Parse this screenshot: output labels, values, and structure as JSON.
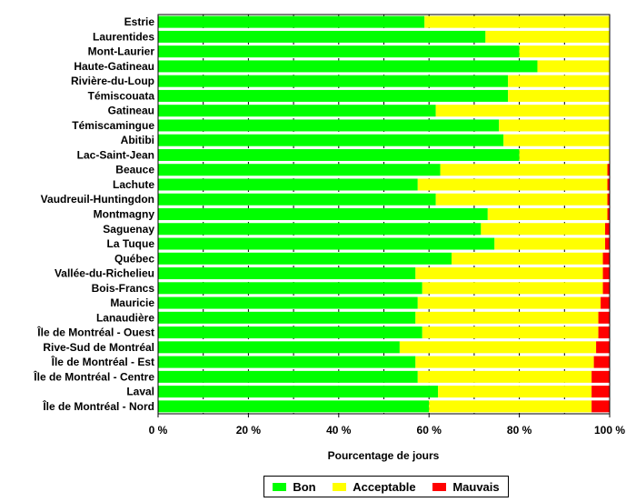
{
  "chart_data": {
    "type": "bar",
    "orientation": "horizontal",
    "stacked": true,
    "xlabel": "Pourcentage de jours",
    "xlim": [
      0,
      100
    ],
    "xticks": [
      "0 %",
      "20 %",
      "40 %",
      "60 %",
      "80 %",
      "100 %"
    ],
    "grid": "vertical dashed",
    "legend_position": "bottom",
    "categories": [
      "Estrie",
      "Laurentides",
      "Mont-Laurier",
      "Haute-Gatineau",
      "Rivière-du-Loup",
      "Témiscouata",
      "Gatineau",
      "Témiscamingue",
      "Abitibi",
      "Lac-Saint-Jean",
      "Beauce",
      "Lachute",
      "Vaudreuil-Huntingdon",
      "Montmagny",
      "Saguenay",
      "La Tuque",
      "Québec",
      "Vallée-du-Richelieu",
      "Bois-Francs",
      "Mauricie",
      "Lanaudière",
      "Île de Montréal - Ouest",
      "Rive-Sud de Montréal",
      "Île de Montréal - Est",
      "Île de Montréal - Centre",
      "Laval",
      "Île de Montréal - Nord"
    ],
    "series": [
      {
        "name": "Bon",
        "color": "#00ff00",
        "values": [
          59,
          72.5,
          80,
          84,
          77.5,
          77.5,
          61.5,
          75.5,
          76.5,
          80,
          62.5,
          57.5,
          61.5,
          73,
          71.5,
          74.5,
          65,
          57,
          58.5,
          57.5,
          57,
          58.5,
          53.5,
          57,
          57.5,
          62,
          60
        ]
      },
      {
        "name": "Acceptable",
        "color": "#ffff00",
        "values": [
          41,
          27.5,
          20,
          16,
          22.5,
          22.5,
          38.5,
          24.5,
          23.5,
          20,
          37,
          42,
          38,
          26.5,
          27.5,
          24.5,
          33.5,
          41.5,
          40,
          40.5,
          40.5,
          39,
          43.5,
          39.5,
          38.5,
          34,
          36
        ]
      },
      {
        "name": "Mauvais",
        "color": "#ff0000",
        "values": [
          0,
          0,
          0,
          0,
          0,
          0,
          0,
          0,
          0,
          0,
          0.5,
          0.5,
          0.5,
          0.5,
          1,
          1,
          1.5,
          1.5,
          1.5,
          2,
          2.5,
          2.5,
          3,
          3.5,
          4,
          4,
          4
        ]
      }
    ]
  }
}
